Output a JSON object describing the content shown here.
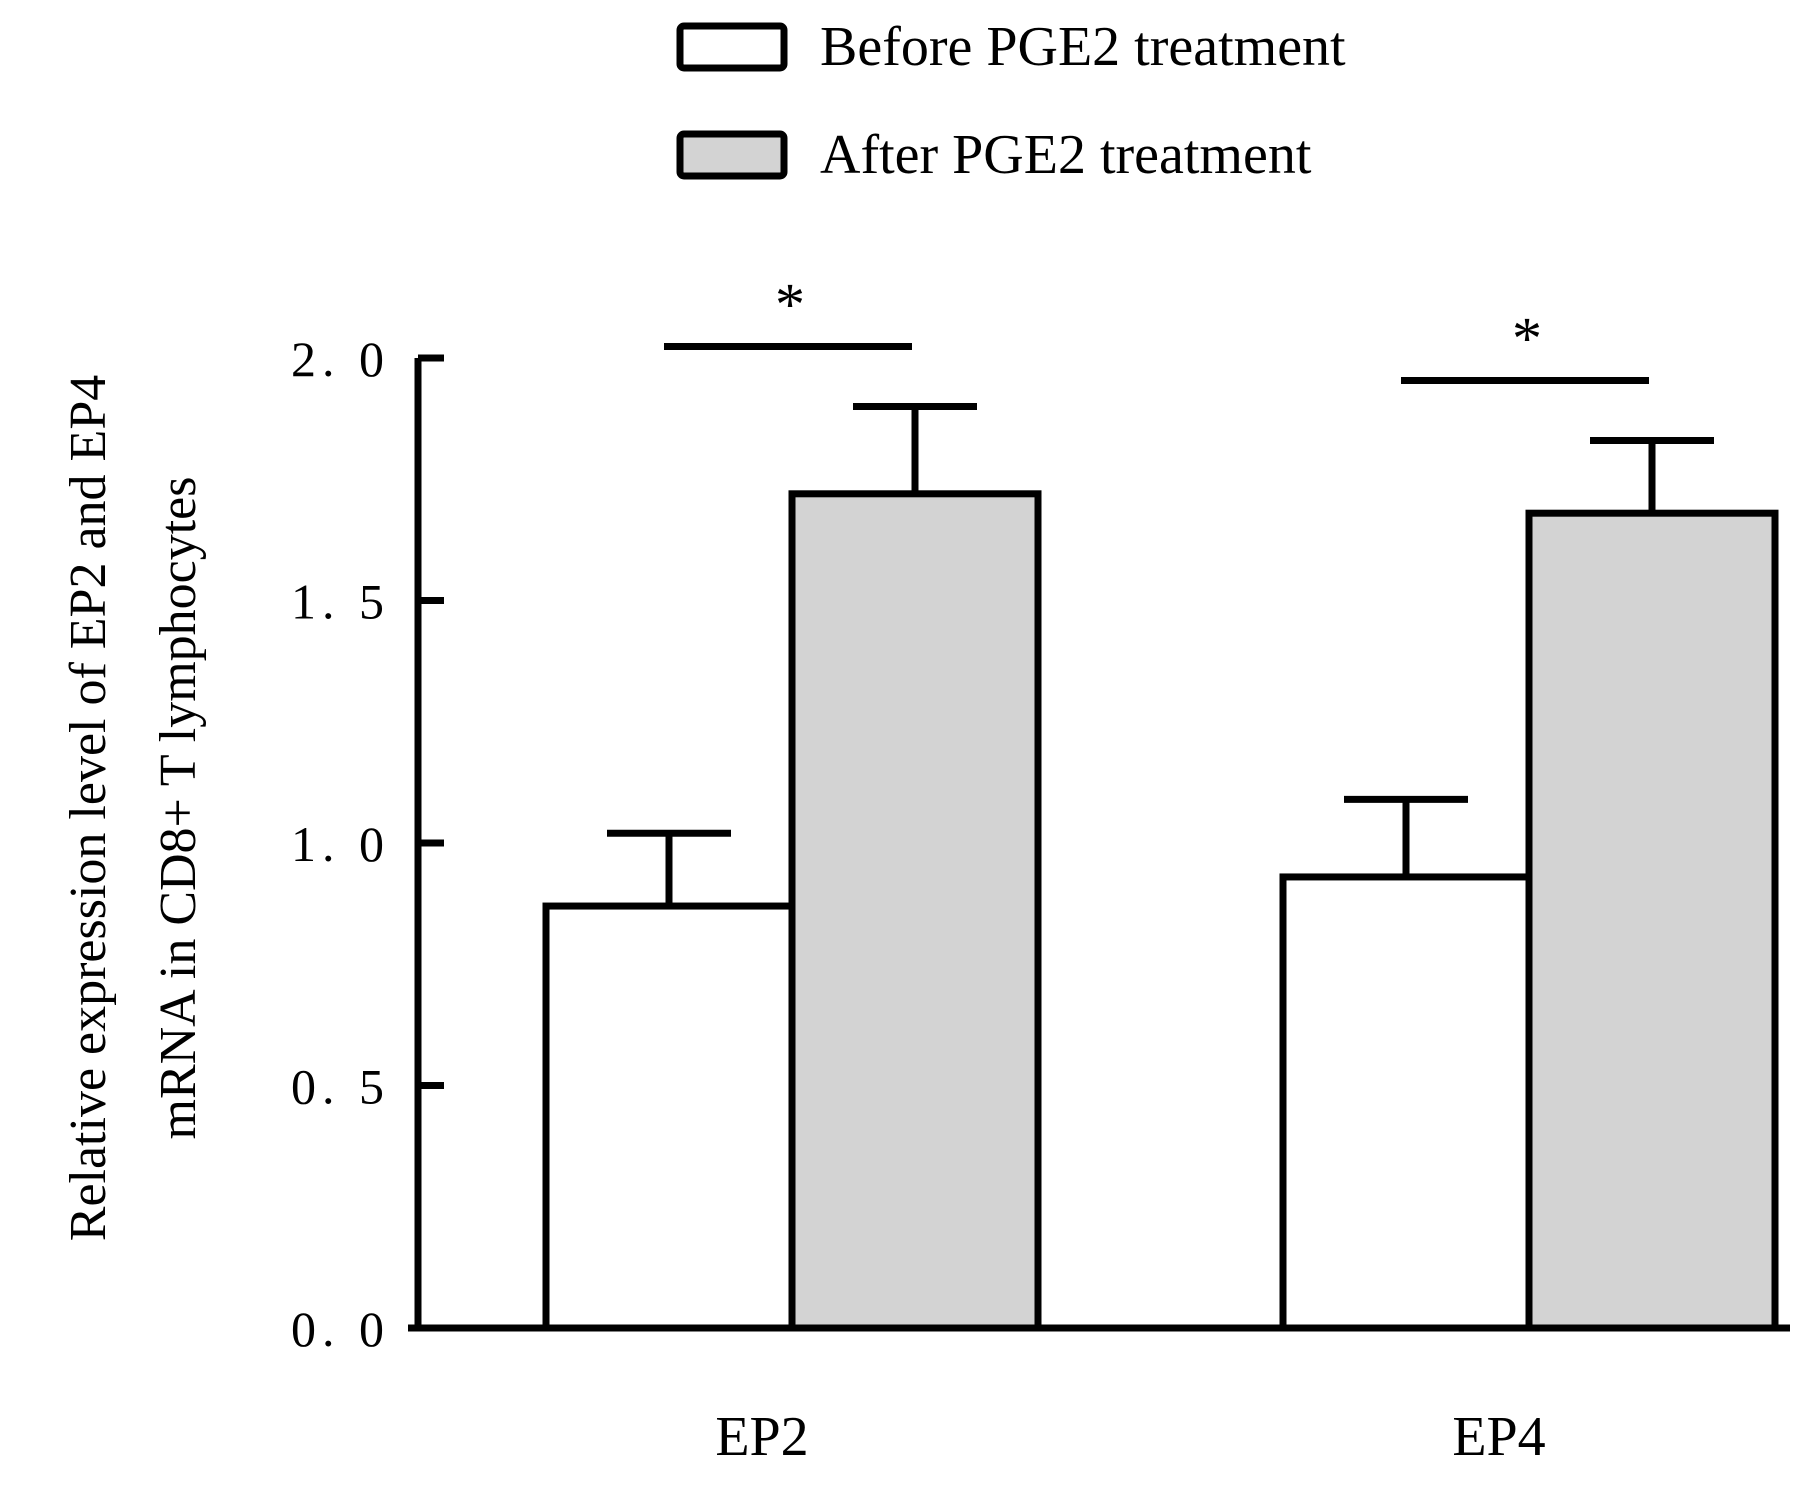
{
  "chart_data": {
    "type": "bar",
    "title": "",
    "xlabel": "",
    "ylabel_lines": [
      "Relative expression level of EP2 and EP4",
      "mRNA in CD8+ T lymphocytes"
    ],
    "categories": [
      "EP2",
      "EP4"
    ],
    "series": [
      {
        "name": "Before PGE2 treatment",
        "values": [
          0.87,
          0.93
        ],
        "errors": [
          0.15,
          0.16
        ],
        "fill": "#ffffff"
      },
      {
        "name": "After PGE2 treatment",
        "values": [
          1.72,
          1.68
        ],
        "errors": [
          0.18,
          0.15
        ],
        "fill": "#d3d3d3"
      }
    ],
    "ylim": [
      0,
      2.0
    ],
    "yticks": [
      0.0,
      0.5,
      1.0,
      1.5,
      2.0
    ],
    "ytick_labels": [
      "0. 0",
      "0. 5",
      "1. 0",
      "1. 5",
      "2. 0"
    ],
    "significance": [
      {
        "category": "EP2",
        "label": "*"
      },
      {
        "category": "EP4",
        "label": "*"
      }
    ],
    "legend_position": "top-right",
    "grid": false
  }
}
